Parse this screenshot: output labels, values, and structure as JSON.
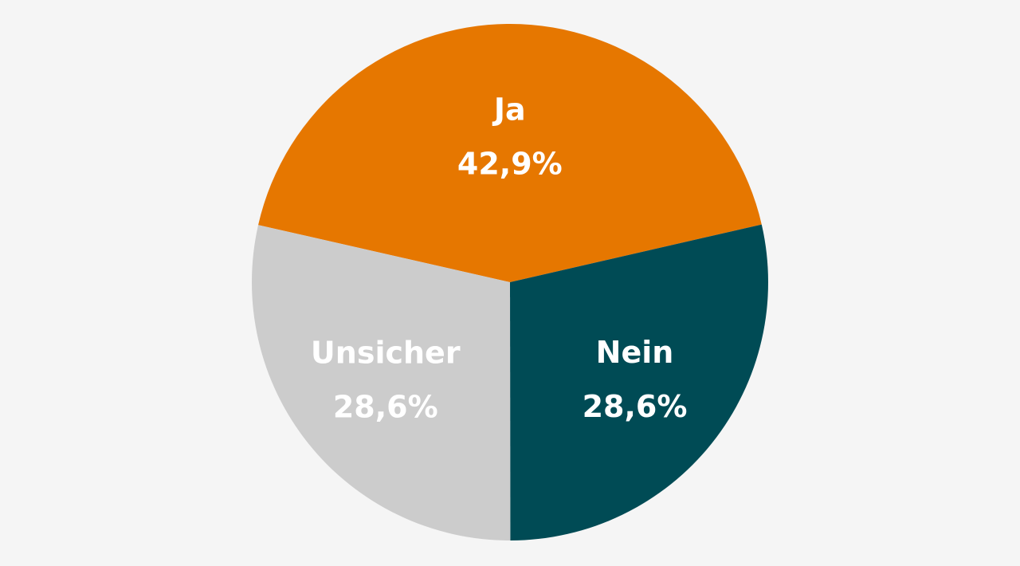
{
  "chart_data": {
    "type": "pie",
    "slices": [
      {
        "label": "Ja",
        "value": 42.9,
        "value_label": "42,9%",
        "color": "#e67700"
      },
      {
        "label": "Nein",
        "value": 28.6,
        "value_label": "28,6%",
        "color": "#004b55"
      },
      {
        "label": "Unsicher",
        "value": 28.6,
        "value_label": "28,6%",
        "color": "#cccccc"
      }
    ],
    "title": "",
    "legend": "none"
  },
  "colors": {
    "background": "#f5f5f5",
    "label_text": "#ffffff"
  }
}
